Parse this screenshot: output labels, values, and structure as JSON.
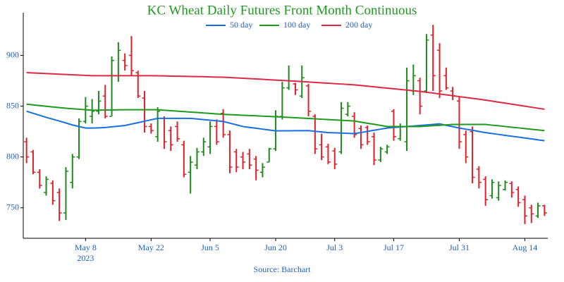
{
  "chart_data": {
    "type": "ohlc",
    "title": "KC Wheat Daily Futures Front Month Continuous",
    "source": "Source: Barchart",
    "year_label": "2023",
    "legend": "top",
    "categories": [
      null,
      null,
      null,
      null,
      null,
      null,
      null,
      null,
      null,
      "May 8",
      null,
      null,
      null,
      null,
      null,
      null,
      null,
      null,
      null,
      "May 22",
      null,
      null,
      null,
      null,
      null,
      null,
      null,
      null,
      "Jun 5",
      null,
      null,
      null,
      null,
      null,
      null,
      null,
      null,
      null,
      "Jun 20",
      null,
      null,
      null,
      null,
      null,
      null,
      null,
      null,
      "Jul 3",
      null,
      null,
      null,
      null,
      null,
      null,
      null,
      null,
      "Jul 17",
      null,
      null,
      null,
      null,
      null,
      null,
      null,
      null,
      null,
      "Jul 31",
      null,
      null,
      null,
      null,
      null,
      null,
      null,
      null,
      null,
      "Aug 14",
      null,
      null,
      null
    ],
    "ohlc": {
      "up_color": "#1e8a1e",
      "down_color": "#e0202a",
      "open": [
        815,
        805,
        785,
        765,
        774,
        765,
        745,
        775,
        800,
        835,
        840,
        845,
        860,
        840,
        880,
        895,
        900,
        883,
        858,
        830,
        820,
        838,
        826,
        830,
        812,
        785,
        792,
        805,
        810,
        830,
        843,
        822,
        805,
        800,
        803,
        798,
        785,
        795,
        808,
        840,
        868,
        872,
        860,
        870,
        840,
        812,
        810,
        806,
        805,
        842,
        840,
        828,
        829,
        820,
        797,
        805,
        845,
        818,
        815,
        865,
        875,
        865,
        920,
        905,
        880,
        865,
        855,
        822,
        825,
        788,
        778,
        762,
        760,
        768,
        774,
        768,
        758,
        750,
        742,
        752
      ],
      "high": [
        819,
        807,
        788,
        781,
        777,
        769,
        790,
        803,
        838,
        859,
        857,
        865,
        871,
        899,
        913,
        902,
        919,
        885,
        865,
        833,
        849,
        840,
        830,
        835,
        816,
        801,
        809,
        819,
        835,
        837,
        847,
        826,
        808,
        805,
        808,
        801,
        794,
        809,
        846,
        874,
        890,
        873,
        890,
        872,
        842,
        823,
        813,
        809,
        854,
        854,
        844,
        831,
        831,
        824,
        810,
        812,
        847,
        833,
        888,
        891,
        878,
        921,
        930,
        912,
        888,
        869,
        859,
        826,
        830,
        791,
        781,
        778,
        776,
        777,
        776,
        771,
        762,
        753,
        755,
        753
      ],
      "low": [
        794,
        783,
        769,
        762,
        753,
        737,
        738,
        769,
        798,
        833,
        833,
        842,
        838,
        840,
        874,
        885,
        880,
        858,
        824,
        823,
        815,
        808,
        806,
        815,
        780,
        764,
        788,
        801,
        803,
        812,
        819,
        784,
        785,
        788,
        788,
        777,
        780,
        795,
        806,
        837,
        866,
        861,
        858,
        840,
        803,
        797,
        793,
        788,
        803,
        840,
        819,
        808,
        812,
        792,
        795,
        803,
        816,
        816,
        806,
        861,
        842,
        863,
        865,
        858,
        866,
        856,
        808,
        794,
        774,
        769,
        752,
        759,
        757,
        767,
        760,
        751,
        734,
        735,
        740,
        742
      ],
      "close": [
        800,
        785,
        772,
        778,
        757,
        745,
        786,
        800,
        835,
        850,
        845,
        855,
        840,
        895,
        905,
        890,
        885,
        860,
        830,
        826,
        845,
        815,
        812,
        818,
        783,
        795,
        805,
        815,
        830,
        815,
        822,
        790,
        790,
        795,
        792,
        787,
        790,
        808,
        840,
        868,
        875,
        866,
        878,
        845,
        808,
        800,
        795,
        793,
        848,
        850,
        822,
        812,
        815,
        797,
        808,
        810,
        820,
        830,
        875,
        880,
        850,
        915,
        880,
        865,
        868,
        860,
        815,
        800,
        780,
        775,
        758,
        775,
        772,
        775,
        765,
        755,
        742,
        744,
        752,
        745
      ]
    },
    "series": [
      {
        "name": "50 day",
        "color": "#1a6fdf",
        "values": [
          845,
          843,
          841,
          839,
          837.2,
          835.4,
          833.5,
          831.5,
          830,
          828.5,
          828.5,
          828.7,
          829,
          829.7,
          830.3,
          831,
          832.4,
          833.8,
          835.2,
          836.6,
          838,
          838,
          838,
          838,
          838,
          838,
          837.4,
          836.8,
          836.2,
          835.6,
          835,
          833.3,
          831.7,
          830,
          829.1,
          828.3,
          827.4,
          826.6,
          825.7,
          825.8,
          825.8,
          825.9,
          825.9,
          826,
          825.3,
          824.7,
          824,
          823.8,
          823.5,
          823.3,
          823,
          824.1,
          825.2,
          826.3,
          827.4,
          828.5,
          829,
          829.5,
          830,
          830.5,
          831,
          831.5,
          832,
          832.6,
          831.2,
          829.9,
          828.5,
          827.4,
          826.3,
          825.1,
          824,
          823.1,
          822.2,
          821.3,
          820.4,
          819.6,
          818.7,
          817.8,
          816.9,
          816
        ]
      },
      {
        "name": "100 day",
        "color": "#1e9a1e",
        "values": [
          852,
          851.3,
          850.6,
          849.9,
          849.2,
          848.6,
          848,
          847.5,
          847,
          846.5,
          846,
          846.1,
          846.2,
          846.3,
          846.4,
          846.5,
          846.5,
          846.5,
          846.5,
          846.5,
          846.5,
          846,
          845.6,
          845.1,
          844.7,
          844.2,
          843.8,
          843.3,
          842.9,
          842.4,
          842,
          841.7,
          841.4,
          841.1,
          840.8,
          840.5,
          840.2,
          839.9,
          839.6,
          839.3,
          839,
          838.6,
          838.3,
          837.9,
          837.6,
          837.2,
          836.8,
          836.5,
          836.1,
          835.8,
          835.4,
          834.3,
          833.2,
          832.2,
          831.1,
          830,
          830,
          830,
          830,
          830,
          830,
          830.4,
          830.8,
          831.2,
          831.6,
          832,
          832,
          832,
          832,
          832,
          832,
          831.3,
          830.7,
          830,
          829.3,
          828.7,
          828,
          827.3,
          826.7,
          826
        ]
      },
      {
        "name": "200 day",
        "color": "#dc2a45",
        "values": [
          883,
          882.7,
          882.4,
          882.1,
          881.8,
          881.5,
          881.2,
          880.9,
          880.6,
          880.3,
          880,
          880,
          880,
          880,
          880,
          880,
          880,
          880,
          880,
          880,
          879.9,
          879.8,
          879.6,
          879.5,
          879.4,
          879.2,
          879.1,
          879,
          878.8,
          878.6,
          878.5,
          878.2,
          877.8,
          877.5,
          877.1,
          876.8,
          876.4,
          876,
          875.7,
          875.3,
          875,
          874.6,
          874.2,
          873.8,
          873.4,
          873,
          872.6,
          872.2,
          871.8,
          871.4,
          871,
          870.4,
          869.7,
          869.1,
          868.4,
          867.8,
          867.2,
          866.5,
          865.9,
          865.2,
          864.6,
          863.7,
          862.9,
          862,
          861.2,
          860.3,
          859.4,
          858.6,
          857.7,
          856.9,
          856,
          855,
          854,
          853,
          852,
          851,
          850,
          849,
          848,
          847
        ]
      }
    ],
    "ylim": [
      720,
      942
    ],
    "yticks": [
      750,
      800,
      850,
      900
    ]
  }
}
